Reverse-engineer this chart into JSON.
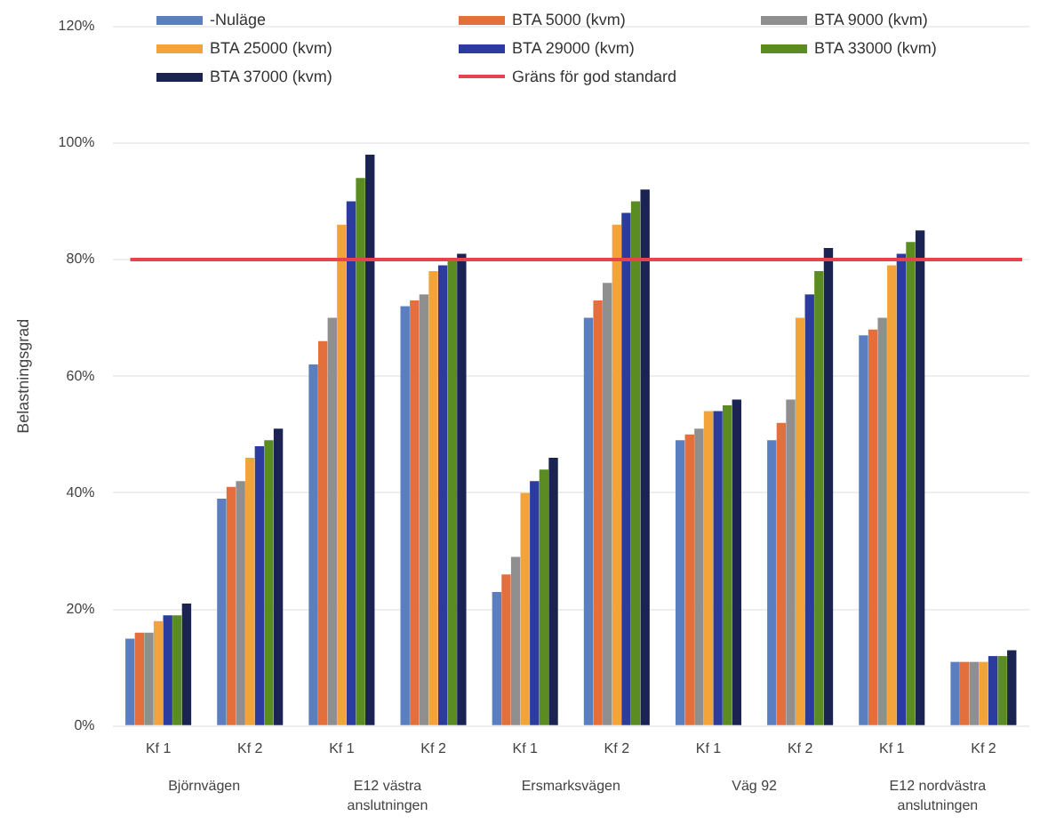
{
  "chart_data": {
    "type": "bar",
    "ylabel": "Belastningsgrad",
    "categories": [
      "Kf 1",
      "Kf 2",
      "Kf 1",
      "Kf 2",
      "Kf 1",
      "Kf 2",
      "Kf 1",
      "Kf 2",
      "Kf 1",
      "Kf 2"
    ],
    "series": [
      {
        "name": "-Nuläge",
        "color": "#5a7fc0",
        "values": [
          15,
          39,
          62,
          72,
          23,
          70,
          49,
          49,
          67,
          11
        ]
      },
      {
        "name": "BTA 5000 (kvm)",
        "color": "#e26f3c",
        "values": [
          16,
          41,
          66,
          73,
          26,
          73,
          50,
          52,
          68,
          11
        ]
      },
      {
        "name": "BTA 9000 (kvm)",
        "color": "#8f8f8f",
        "values": [
          16,
          42,
          70,
          74,
          29,
          76,
          51,
          56,
          70,
          11
        ]
      },
      {
        "name": "BTA 25000 (kvm)",
        "color": "#f2a33a",
        "values": [
          18,
          46,
          86,
          78,
          40,
          86,
          54,
          70,
          79,
          11
        ]
      },
      {
        "name": "BTA 29000 (kvm)",
        "color": "#2b3b9e",
        "values": [
          19,
          48,
          90,
          79,
          42,
          88,
          54,
          74,
          81,
          12
        ]
      },
      {
        "name": "BTA 33000 (kvm)",
        "color": "#5b8c22",
        "values": [
          19,
          49,
          94,
          80,
          44,
          90,
          55,
          78,
          83,
          12
        ]
      },
      {
        "name": "BTA 37000 (kvm)",
        "color": "#1b2352",
        "values": [
          21,
          51,
          98,
          81,
          46,
          92,
          56,
          82,
          85,
          13
        ]
      }
    ],
    "ylim": [
      0,
      120
    ],
    "yticks": [
      {
        "value": 0,
        "label": "0%"
      },
      {
        "value": 20,
        "label": "20%"
      },
      {
        "value": 40,
        "label": "40%"
      },
      {
        "value": 60,
        "label": "60%"
      },
      {
        "value": 80,
        "label": "80%"
      },
      {
        "value": 100,
        "label": "100%"
      },
      {
        "value": 120,
        "label": "120%"
      }
    ],
    "ref_lines": [
      {
        "axis": "y",
        "value": 80,
        "label": "Gräns för god standard",
        "color": "#e8424c"
      }
    ],
    "annotations": [
      "Björnvägen",
      "E12 västra anslutningen",
      "Ersmarksvägen",
      "Väg 92",
      "E12 nordvästra anslutningen"
    ],
    "grid": "y",
    "legend": "top"
  }
}
